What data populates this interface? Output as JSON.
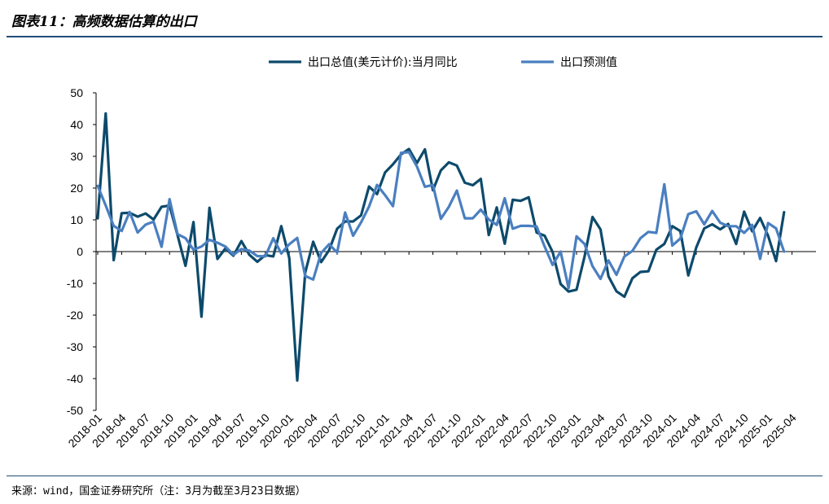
{
  "header": {
    "title": "图表11：高频数据估算的出口"
  },
  "footer": {
    "source": "来源：wind，国金证券研究所（注：3月为截至3月23日数据）"
  },
  "chart_data": {
    "type": "line",
    "title": "",
    "xlabel": "",
    "ylabel": "",
    "ylim": [
      -50,
      50
    ],
    "yticks": [
      50,
      40,
      30,
      20,
      10,
      0,
      -10,
      -20,
      -30,
      -40,
      -50
    ],
    "x_tick_labels": [
      "2018-01",
      "2018-04",
      "2018-07",
      "2018-10",
      "2019-01",
      "2019-04",
      "2019-07",
      "2019-10",
      "2020-01",
      "2020-04",
      "2020-07",
      "2020-10",
      "2021-01",
      "2021-04",
      "2021-07",
      "2021-10",
      "2022-01",
      "2022-04",
      "2022-07",
      "2022-10",
      "2023-01",
      "2023-04",
      "2023-07",
      "2023-10",
      "2024-01",
      "2024-04",
      "2024-07",
      "2024-10",
      "2025-01",
      "2025-04"
    ],
    "start_month": "2018-01",
    "legend_position": "top",
    "grid": false,
    "series": [
      {
        "name": "出口总值(美元计价):当月同比",
        "color": "#0d4a6b",
        "values": [
          10.5,
          43.5,
          -2.7,
          12.1,
          12.2,
          11.0,
          12.0,
          10.1,
          14.1,
          14.5,
          5.2,
          -4.5,
          9.3,
          -20.5,
          13.8,
          -2.3,
          1.0,
          -1.3,
          3.3,
          -1.0,
          -3.2,
          -1.1,
          -1.5,
          8.0,
          -2.0,
          -40.6,
          -6.6,
          3.1,
          -3.3,
          0.5,
          7.2,
          9.5,
          9.5,
          11.4,
          20.5,
          18.1,
          24.9,
          27.5,
          30.6,
          32.3,
          27.9,
          32.2,
          19.3,
          25.6,
          28.1,
          27.1,
          21.7,
          20.9,
          22.9,
          5.2,
          13.9,
          2.5,
          16.3,
          16.0,
          17.1,
          6.0,
          5.0,
          -0.1,
          -10.2,
          -12.6,
          -12.0,
          -1.6,
          10.9,
          7.0,
          -7.8,
          -12.5,
          -14.2,
          -8.4,
          -6.4,
          -6.2,
          0.6,
          2.4,
          8.0,
          6.5,
          -7.5,
          1.3,
          7.3,
          8.6,
          7.0,
          8.7,
          2.4,
          12.6,
          6.4,
          10.6,
          5.0,
          -3.0,
          12.4
        ]
      },
      {
        "name": "出口预测值",
        "color": "#4a7fc0",
        "values": [
          20.7,
          14.5,
          8.1,
          6.5,
          12.5,
          6.0,
          8.5,
          9.4,
          1.5,
          16.5,
          5.5,
          4.2,
          0.6,
          1.6,
          3.7,
          2.8,
          1.6,
          -1.0,
          0.8,
          0.3,
          -1.4,
          -1.5,
          4.2,
          -0.6,
          2.3,
          4.3,
          -7.7,
          -8.8,
          -0.4,
          2.3,
          -0.3,
          12.3,
          5.0,
          9.2,
          14.2,
          21.0,
          17.8,
          14.3,
          31.1,
          31.3,
          26.8,
          20.4,
          21.0,
          10.3,
          14.1,
          19.2,
          10.5,
          10.5,
          13.2,
          10.1,
          8.4,
          16.8,
          7.2,
          8.1,
          8.1,
          7.9,
          1.6,
          -4.2,
          0.0,
          -11.5,
          4.8,
          2.4,
          -4.6,
          -8.6,
          -2.8,
          -7.3,
          -1.5,
          0.2,
          4.2,
          6.2,
          5.9,
          21.2,
          1.9,
          4.1,
          11.8,
          12.7,
          8.6,
          12.8,
          9.1,
          8.0,
          8.0,
          5.9,
          8.4,
          -2.3,
          9.0,
          7.3,
          0.0
        ]
      }
    ]
  }
}
